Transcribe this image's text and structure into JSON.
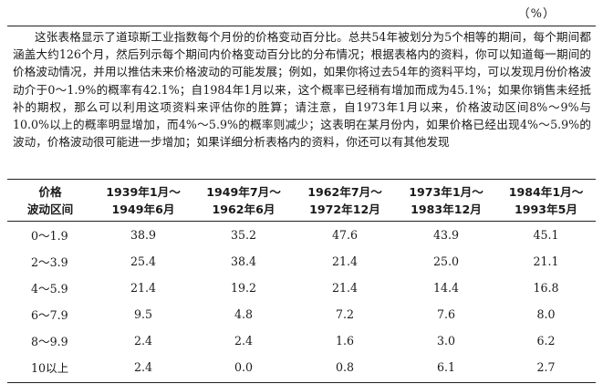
{
  "unit_label": "（%）",
  "description": "这张表格显示了道琼斯工业指数每个月份的价格变动百分比。总共54年被划分为5个相等的期间，每个期间都涵盖大约126个月，然后列示每个期间内价格变动百分比的分布情况；根据表格内的资料，你可以知道每一期间的价格波动情况，并用以推估未来价格波动的可能发展；例如，如果你将过去54年的资料平均，可以发现月份价格波动介于0～1.9%的概率有42.1%；自1984年1月以来，这个概率已经稍有增加而成为45.1%；如果你销售未经抵补的期权，那么可以利用这项资料来评估你的胜算；请注意，自1973年1月以来，价格波动区间8%～9%与10.0%以上的概率明显增加，而4%～5.9%的概率则减少；这表明在某月份内，如果价格已经出现4%～5.9%的波动，价格波动很可能进一步增加；如果详细分析表格内的资料，你还可以有其他发现",
  "table": {
    "header_range": [
      "价格",
      "波动区间"
    ],
    "periods": [
      [
        "1939年1月～",
        "1949年6月"
      ],
      [
        "1949年7月～",
        "1962年6月"
      ],
      [
        "1962年7月～",
        "1972年12月"
      ],
      [
        "1973年1月～",
        "1983年12月"
      ],
      [
        "1984年1月～",
        "1993年5月"
      ]
    ],
    "rows": [
      {
        "range": "0～1.9",
        "values": [
          "38.9",
          "35.2",
          "47.6",
          "43.9",
          "45.1"
        ]
      },
      {
        "range": "2～3.9",
        "values": [
          "25.4",
          "38.4",
          "21.4",
          "25.0",
          "21.1"
        ]
      },
      {
        "range": "4～5.9",
        "values": [
          "21.4",
          "19.2",
          "21.4",
          "14.4",
          "16.8"
        ]
      },
      {
        "range": "6～7.9",
        "values": [
          "9.5",
          "4.8",
          "7.2",
          "7.6",
          "8.0"
        ]
      },
      {
        "range": "8～9.9",
        "values": [
          "2.4",
          "2.4",
          "1.6",
          "3.0",
          "6.2"
        ]
      },
      {
        "range": "10以上",
        "values": [
          "2.4",
          "0.0",
          "0.8",
          "6.1",
          "2.7"
        ]
      }
    ]
  }
}
